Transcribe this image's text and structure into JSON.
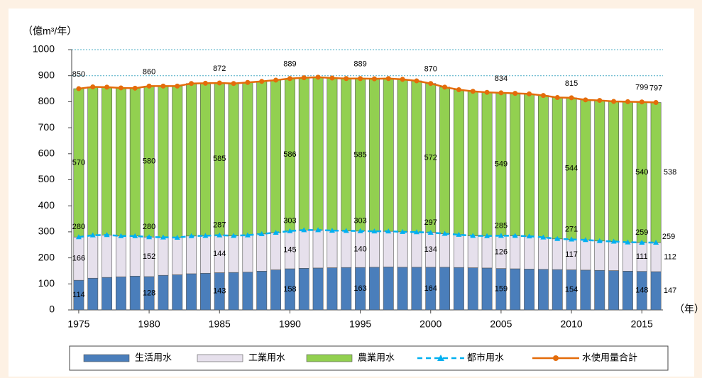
{
  "chart_data": {
    "type": "stacked-bar-line",
    "y_label": "（億m³/年）",
    "x_label": "（年）",
    "x": [
      1975,
      1976,
      1977,
      1978,
      1979,
      1980,
      1981,
      1982,
      1983,
      1984,
      1985,
      1986,
      1987,
      1988,
      1989,
      1990,
      1991,
      1992,
      1993,
      1994,
      1995,
      1996,
      1997,
      1998,
      1999,
      2000,
      2001,
      2002,
      2003,
      2004,
      2005,
      2006,
      2007,
      2008,
      2009,
      2010,
      2011,
      2012,
      2013,
      2014,
      2015,
      2016
    ],
    "xlim": [
      1974.5,
      2016.5
    ],
    "xticks": [
      1975,
      1980,
      1985,
      1990,
      1995,
      2000,
      2005,
      2010,
      2015
    ],
    "ylim": [
      0,
      1000
    ],
    "yticks": [
      0,
      100,
      200,
      300,
      400,
      500,
      600,
      700,
      800,
      900,
      1000
    ],
    "grid_lines": [
      900,
      1000
    ],
    "series": [
      {
        "name": "生活用水",
        "kind": "bar",
        "color": "#4a7ebb",
        "values": [
          114,
          122,
          125,
          127,
          130,
          128,
          133,
          135,
          139,
          141,
          143,
          144,
          145,
          149,
          154,
          158,
          160,
          161,
          162,
          163,
          163,
          164,
          165,
          164,
          164,
          164,
          164,
          163,
          162,
          161,
          159,
          158,
          157,
          156,
          155,
          154,
          153,
          152,
          151,
          149,
          148,
          147
        ],
        "value_labels": [
          "114",
          null,
          null,
          null,
          null,
          "128",
          null,
          null,
          null,
          null,
          "143",
          null,
          null,
          null,
          null,
          "158",
          null,
          null,
          null,
          null,
          "163",
          null,
          null,
          null,
          null,
          "164",
          null,
          null,
          null,
          null,
          "159",
          null,
          null,
          null,
          null,
          "154",
          null,
          null,
          null,
          null,
          "148",
          "147"
        ]
      },
      {
        "name": "工業用水",
        "kind": "bar",
        "color": "#e6e0ec",
        "values": [
          166,
          165,
          163,
          157,
          154,
          152,
          146,
          143,
          145,
          144,
          144,
          141,
          142,
          143,
          143,
          145,
          147,
          146,
          143,
          141,
          140,
          138,
          137,
          136,
          135,
          134,
          129,
          126,
          123,
          123,
          126,
          127,
          126,
          123,
          118,
          117,
          116,
          113,
          112,
          111,
          111,
          112
        ],
        "value_labels": [
          "166",
          null,
          null,
          null,
          null,
          "152",
          null,
          null,
          null,
          null,
          "144",
          null,
          null,
          null,
          null,
          "145",
          null,
          null,
          null,
          null,
          "140",
          null,
          null,
          null,
          null,
          "134",
          null,
          null,
          null,
          null,
          "126",
          null,
          null,
          null,
          null,
          "117",
          null,
          null,
          null,
          null,
          "111",
          "112"
        ]
      },
      {
        "name": "農業用水",
        "kind": "bar",
        "color": "#92d050",
        "values": [
          570,
          570,
          568,
          569,
          568,
          580,
          581,
          582,
          586,
          586,
          585,
          585,
          587,
          586,
          586,
          586,
          585,
          587,
          586,
          585,
          585,
          586,
          587,
          586,
          581,
          572,
          563,
          557,
          555,
          552,
          549,
          547,
          547,
          545,
          543,
          544,
          538,
          540,
          538,
          540,
          540,
          538
        ],
        "value_labels": [
          "570",
          null,
          null,
          null,
          null,
          "580",
          null,
          null,
          null,
          null,
          "585",
          null,
          null,
          null,
          null,
          "586",
          null,
          null,
          null,
          null,
          "585",
          null,
          null,
          null,
          null,
          "572",
          null,
          null,
          null,
          null,
          "549",
          null,
          null,
          null,
          null,
          "544",
          null,
          null,
          null,
          null,
          "540",
          "538"
        ]
      },
      {
        "name": "都市用水",
        "kind": "dashed-line",
        "color": "#00b0f0",
        "values": [
          280,
          287,
          288,
          284,
          284,
          280,
          279,
          278,
          284,
          285,
          287,
          285,
          287,
          292,
          297,
          303,
          307,
          307,
          305,
          304,
          303,
          302,
          302,
          300,
          299,
          297,
          293,
          289,
          285,
          284,
          285,
          285,
          283,
          279,
          273,
          271,
          269,
          265,
          263,
          260,
          259,
          259
        ],
        "value_labels": [
          "280",
          null,
          null,
          null,
          null,
          "280",
          null,
          null,
          null,
          null,
          "287",
          null,
          null,
          null,
          null,
          "303",
          null,
          null,
          null,
          null,
          "303",
          null,
          null,
          null,
          null,
          "297",
          null,
          null,
          null,
          null,
          "285",
          null,
          null,
          null,
          null,
          "271",
          null,
          null,
          null,
          null,
          "259",
          "259"
        ]
      },
      {
        "name": "水使用量合計",
        "kind": "line",
        "color": "#e46c0a",
        "values": [
          850,
          857,
          856,
          853,
          852,
          860,
          860,
          860,
          870,
          871,
          872,
          870,
          874,
          878,
          883,
          889,
          892,
          894,
          891,
          889,
          889,
          888,
          889,
          886,
          880,
          870,
          856,
          846,
          840,
          836,
          834,
          832,
          830,
          824,
          816,
          815,
          807,
          805,
          801,
          800,
          799,
          797
        ],
        "value_labels": [
          "850",
          null,
          null,
          null,
          null,
          "860",
          null,
          null,
          null,
          null,
          "872",
          null,
          null,
          null,
          null,
          "889",
          null,
          null,
          null,
          null,
          "889",
          null,
          null,
          null,
          null,
          "870",
          null,
          null,
          null,
          null,
          "834",
          null,
          null,
          null,
          null,
          "815",
          null,
          null,
          null,
          null,
          "799",
          "797"
        ]
      }
    ]
  }
}
